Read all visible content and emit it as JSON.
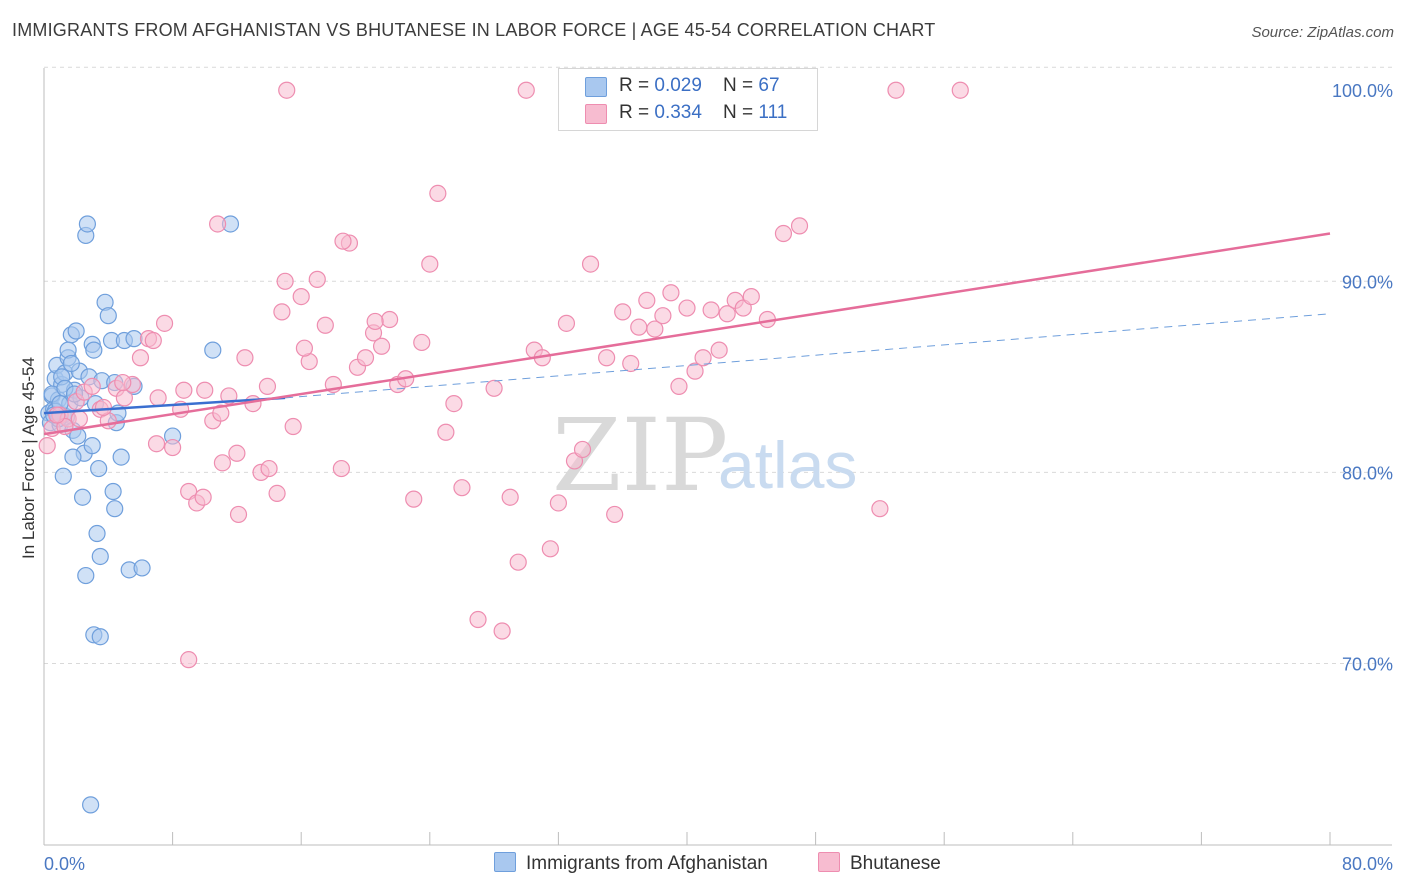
{
  "title": "IMMIGRANTS FROM AFGHANISTAN VS BHUTANESE IN LABOR FORCE | AGE 45-54 CORRELATION CHART",
  "source": "Source: ZipAtlas.com",
  "watermark": {
    "zip": "ZIP",
    "atlas": "atlas"
  },
  "legend_top": [
    {
      "r_label": "R = ",
      "r_value": "0.029",
      "n_label": "N = ",
      "n_value": "67",
      "color": "#a9c8ef",
      "border": "#6f9fdc"
    },
    {
      "r_label": "R = ",
      "r_value": "0.334",
      "n_label": "N = ",
      "n_value": "111",
      "color": "#f7bcd0",
      "border": "#ee8db0"
    }
  ],
  "legend_bottom": [
    {
      "label": "Immigrants from Afghanistan",
      "color": "#a9c8ef",
      "border": "#6f9fdc"
    },
    {
      "label": "Bhutanese",
      "color": "#f7bcd0",
      "border": "#ee8db0"
    }
  ],
  "chart_data": {
    "type": "scatter",
    "title": "IMMIGRANTS FROM AFGHANISTAN VS BHUTANESE IN LABOR FORCE | AGE 45-54 CORRELATION CHART",
    "xlabel": "",
    "ylabel": "In Labor Force | Age 45-54",
    "xlim": [
      0,
      80
    ],
    "ylim": [
      60.5,
      102
    ],
    "x_tick_labels": [
      {
        "value": 0,
        "label": "0.0%"
      },
      {
        "value": 80,
        "label": "80.0%"
      }
    ],
    "y_tick_labels": [
      {
        "value": 100,
        "label": "100.0%"
      },
      {
        "value": 90,
        "label": "90.0%"
      },
      {
        "value": 80,
        "label": "80.0%"
      },
      {
        "value": 70,
        "label": "70.0%"
      }
    ],
    "y_gridlines": [
      70,
      80,
      90,
      101.2
    ],
    "series": [
      {
        "name": "Immigrants from Afghanistan",
        "color": "#6f9fdc",
        "fill": "#a9c8ef",
        "trend": {
          "x0": 0,
          "y0": 83.1,
          "x1": 15,
          "y1": 83.9,
          "style": "solid",
          "color": "#3a6fd0"
        },
        "trend_ext": {
          "x0": 15,
          "y0": 83.9,
          "x1": 80,
          "y1": 88.3,
          "style": "dashed",
          "color": "#6f9fdc"
        },
        "points": [
          [
            0.3,
            83.1
          ],
          [
            0.4,
            82.6
          ],
          [
            0.5,
            84.0
          ],
          [
            0.6,
            83.3
          ],
          [
            0.7,
            84.9
          ],
          [
            0.8,
            85.6
          ],
          [
            0.9,
            83.8
          ],
          [
            1.0,
            82.5
          ],
          [
            1.1,
            84.6
          ],
          [
            1.2,
            83.0
          ],
          [
            1.3,
            85.2
          ],
          [
            1.4,
            82.9
          ],
          [
            1.5,
            86.0
          ],
          [
            1.6,
            83.6
          ],
          [
            1.7,
            87.2
          ],
          [
            1.8,
            82.2
          ],
          [
            1.9,
            84.3
          ],
          [
            2.0,
            87.4
          ],
          [
            2.1,
            81.9
          ],
          [
            2.2,
            85.3
          ],
          [
            2.3,
            83.9
          ],
          [
            0.5,
            84.1
          ],
          [
            0.7,
            83.2
          ],
          [
            0.9,
            82.8
          ],
          [
            1.1,
            85.0
          ],
          [
            1.3,
            84.4
          ],
          [
            1.5,
            86.4
          ],
          [
            1.7,
            85.7
          ],
          [
            2.5,
            81.0
          ],
          [
            2.8,
            85.0
          ],
          [
            3.0,
            86.7
          ],
          [
            3.1,
            86.4
          ],
          [
            3.2,
            83.6
          ],
          [
            3.4,
            80.2
          ],
          [
            3.6,
            84.8
          ],
          [
            3.8,
            88.9
          ],
          [
            4.0,
            88.2
          ],
          [
            4.2,
            86.9
          ],
          [
            4.4,
            84.7
          ],
          [
            4.5,
            82.6
          ],
          [
            4.6,
            83.1
          ],
          [
            5.0,
            86.9
          ],
          [
            1.2,
            79.8
          ],
          [
            1.8,
            80.8
          ],
          [
            2.4,
            78.7
          ],
          [
            2.6,
            92.4
          ],
          [
            2.7,
            93.0
          ],
          [
            3.0,
            81.4
          ],
          [
            3.3,
            76.8
          ],
          [
            3.5,
            75.6
          ],
          [
            4.4,
            78.1
          ],
          [
            4.3,
            79.0
          ],
          [
            4.8,
            80.8
          ],
          [
            5.3,
            74.9
          ],
          [
            6.1,
            75.0
          ],
          [
            2.6,
            74.6
          ],
          [
            3.1,
            71.5
          ],
          [
            3.5,
            71.4
          ],
          [
            5.6,
            87.0
          ],
          [
            5.6,
            84.5
          ],
          [
            8.0,
            81.9
          ],
          [
            10.5,
            86.4
          ],
          [
            11.6,
            93.0
          ],
          [
            2.9,
            62.6
          ],
          [
            0.6,
            83.0
          ],
          [
            1.0,
            83.6
          ],
          [
            1.9,
            84.1
          ]
        ]
      },
      {
        "name": "Bhutanese",
        "color": "#ee8db0",
        "fill": "#f7bcd0",
        "trend": {
          "x0": 0,
          "y0": 82.0,
          "x1": 80,
          "y1": 92.5,
          "style": "solid",
          "color": "#e56d9a"
        },
        "points": [
          [
            0.2,
            81.4
          ],
          [
            0.5,
            82.3
          ],
          [
            1.0,
            83.0
          ],
          [
            1.5,
            82.8
          ],
          [
            2.0,
            83.7
          ],
          [
            2.5,
            84.2
          ],
          [
            3.0,
            84.5
          ],
          [
            3.5,
            83.3
          ],
          [
            4.0,
            82.7
          ],
          [
            4.5,
            84.4
          ],
          [
            5.0,
            83.9
          ],
          [
            5.5,
            84.6
          ],
          [
            6.0,
            86.0
          ],
          [
            6.5,
            87.0
          ],
          [
            7.0,
            81.5
          ],
          [
            7.5,
            87.8
          ],
          [
            8.0,
            81.3
          ],
          [
            8.5,
            83.3
          ],
          [
            9.0,
            79.0
          ],
          [
            9.5,
            78.4
          ],
          [
            10.0,
            84.3
          ],
          [
            10.5,
            82.7
          ],
          [
            11.0,
            83.1
          ],
          [
            11.5,
            84.0
          ],
          [
            12.0,
            81.0
          ],
          [
            12.5,
            86.0
          ],
          [
            13.0,
            83.6
          ],
          [
            13.5,
            80.0
          ],
          [
            14.0,
            80.2
          ],
          [
            14.5,
            78.9
          ],
          [
            15.0,
            90.0
          ],
          [
            15.5,
            82.4
          ],
          [
            16.0,
            89.2
          ],
          [
            16.5,
            85.8
          ],
          [
            17.0,
            90.1
          ],
          [
            17.5,
            87.7
          ],
          [
            18.0,
            84.6
          ],
          [
            18.5,
            80.2
          ],
          [
            19.0,
            92.0
          ],
          [
            19.5,
            85.5
          ],
          [
            20.0,
            86.0
          ],
          [
            20.5,
            87.3
          ],
          [
            21.0,
            86.6
          ],
          [
            21.5,
            88.0
          ],
          [
            22.0,
            84.6
          ],
          [
            22.5,
            84.9
          ],
          [
            23.0,
            78.6
          ],
          [
            23.5,
            86.8
          ],
          [
            24.0,
            90.9
          ],
          [
            24.5,
            94.6
          ],
          [
            25.0,
            82.1
          ],
          [
            25.5,
            83.6
          ],
          [
            26.0,
            79.2
          ],
          [
            27.0,
            72.3
          ],
          [
            28.0,
            84.4
          ],
          [
            28.5,
            71.7
          ],
          [
            29.0,
            78.7
          ],
          [
            29.5,
            75.3
          ],
          [
            30.0,
            100.0
          ],
          [
            30.5,
            86.4
          ],
          [
            31.0,
            86.0
          ],
          [
            31.5,
            76.0
          ],
          [
            32.0,
            78.4
          ],
          [
            32.5,
            87.8
          ],
          [
            33.0,
            80.6
          ],
          [
            33.5,
            81.2
          ],
          [
            34.0,
            90.9
          ],
          [
            35.0,
            86.0
          ],
          [
            35.5,
            77.8
          ],
          [
            36.0,
            88.4
          ],
          [
            36.5,
            85.7
          ],
          [
            37.0,
            87.6
          ],
          [
            37.5,
            89.0
          ],
          [
            38.0,
            87.5
          ],
          [
            38.5,
            88.2
          ],
          [
            39.0,
            89.4
          ],
          [
            39.5,
            84.5
          ],
          [
            40.0,
            88.6
          ],
          [
            40.5,
            85.3
          ],
          [
            41.0,
            86.0
          ],
          [
            41.5,
            88.5
          ],
          [
            42.0,
            86.4
          ],
          [
            42.5,
            88.3
          ],
          [
            43.0,
            89.0
          ],
          [
            43.5,
            88.6
          ],
          [
            44.0,
            89.2
          ],
          [
            45.0,
            88.0
          ],
          [
            46.0,
            92.5
          ],
          [
            47.0,
            92.9
          ],
          [
            52.0,
            78.1
          ],
          [
            53.0,
            100.0
          ],
          [
            57.0,
            100.0
          ],
          [
            10.8,
            93.0
          ],
          [
            14.8,
            88.4
          ],
          [
            9.0,
            70.2
          ],
          [
            6.8,
            86.9
          ],
          [
            4.9,
            84.7
          ],
          [
            3.7,
            83.4
          ],
          [
            2.2,
            82.8
          ],
          [
            1.3,
            82.4
          ],
          [
            0.8,
            83.0
          ],
          [
            15.1,
            100.0
          ],
          [
            11.1,
            80.5
          ],
          [
            9.9,
            78.7
          ],
          [
            12.1,
            77.8
          ],
          [
            18.6,
            92.1
          ],
          [
            20.6,
            87.9
          ],
          [
            16.2,
            86.5
          ],
          [
            13.9,
            84.5
          ],
          [
            8.7,
            84.3
          ],
          [
            7.1,
            83.9
          ]
        ]
      }
    ]
  }
}
